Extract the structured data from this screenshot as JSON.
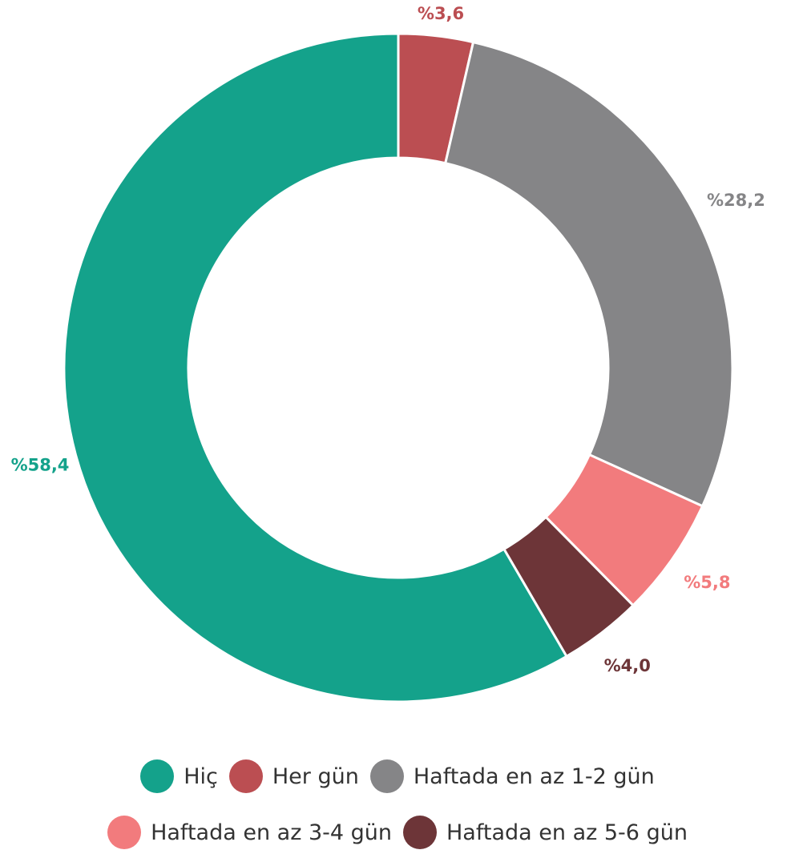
{
  "chart_data": {
    "type": "pie",
    "categories": [
      "Hiç",
      "Her gün",
      "Haftada en az 1-2 gün",
      "Haftada en az 3-4 gün",
      "Haftada en az 5-6 gün"
    ],
    "values": [
      58.4,
      3.6,
      28.2,
      5.8,
      4.0
    ],
    "value_labels": [
      "%58,4",
      "%3,6",
      "%28,2",
      "%5,8",
      "%4,0"
    ],
    "colors": [
      "#14a28b",
      "#bb4e52",
      "#858587",
      "#f27b7d",
      "#6d3538"
    ],
    "legend": "bottom"
  }
}
